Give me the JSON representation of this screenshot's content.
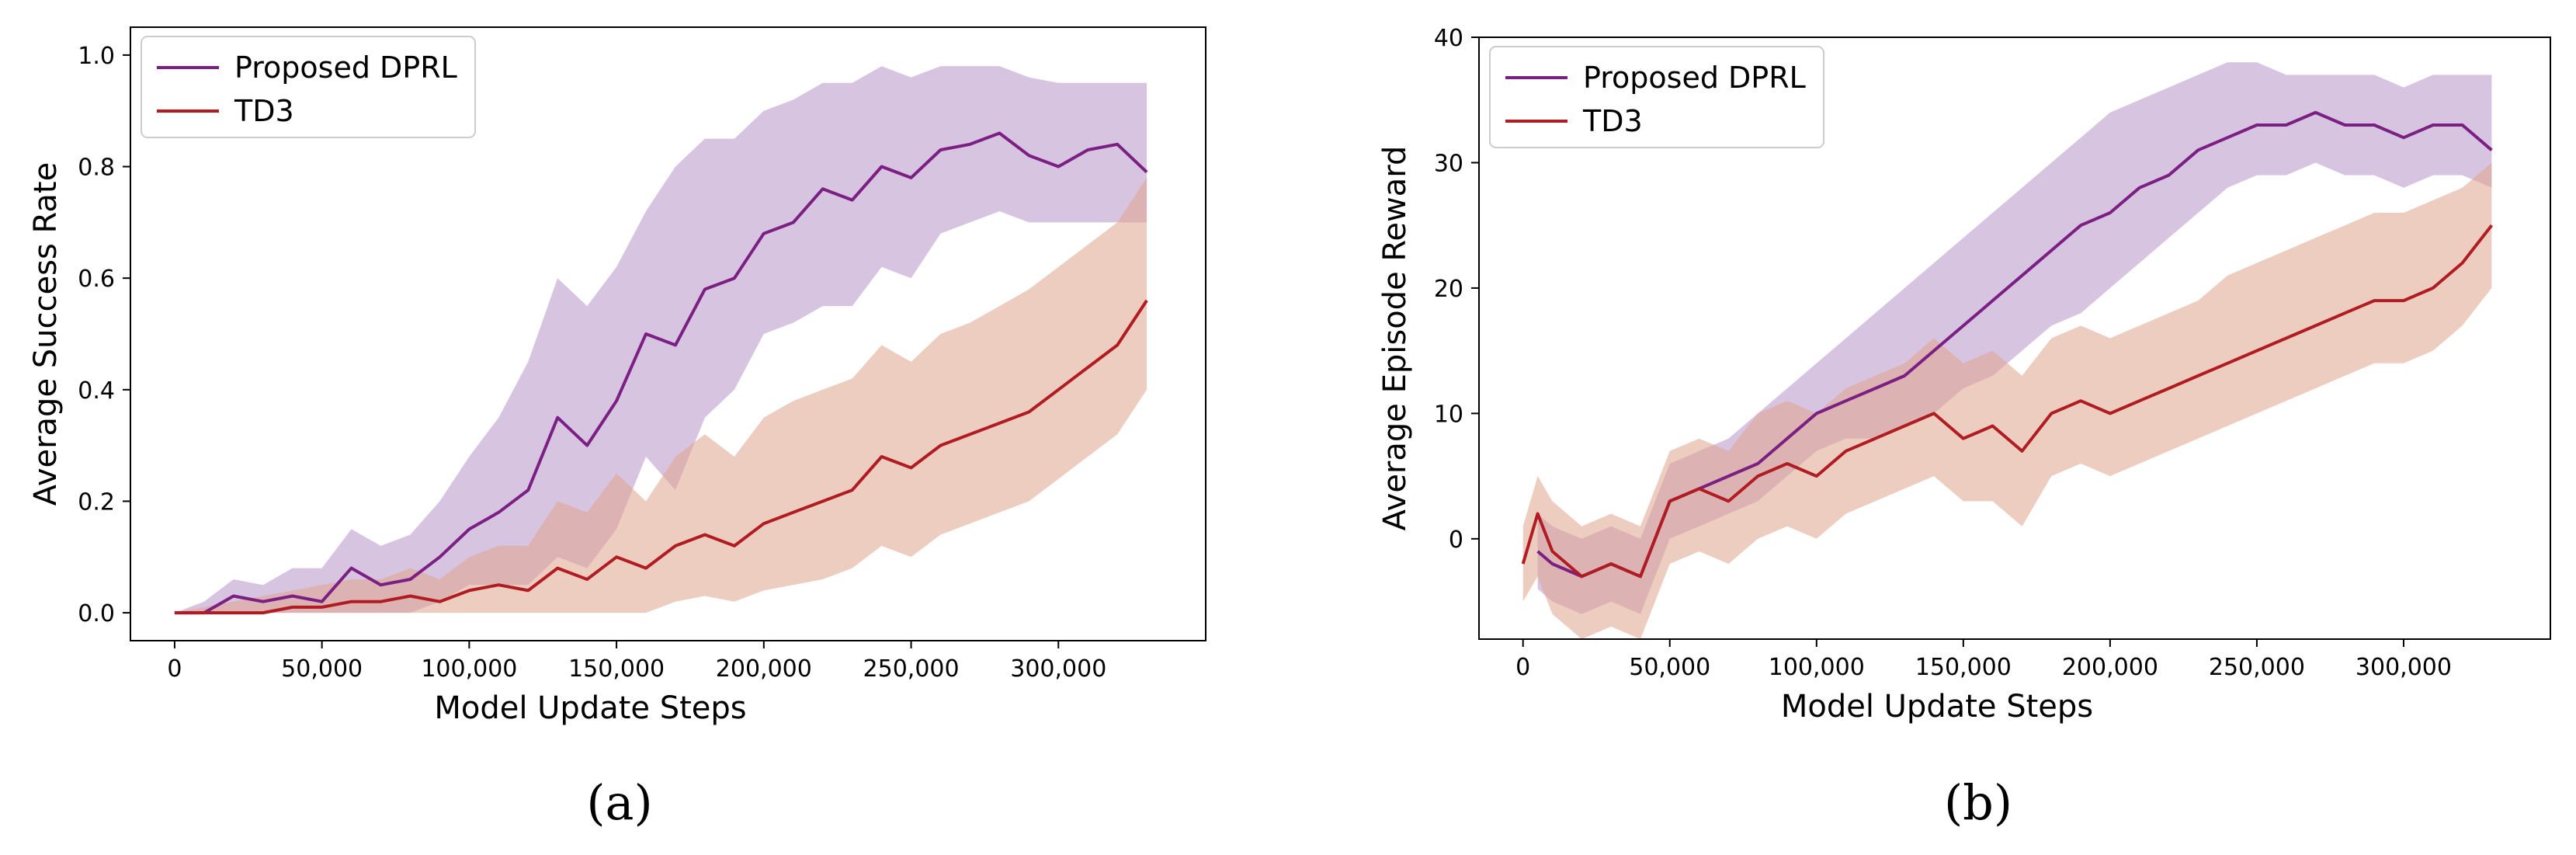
{
  "colors": {
    "dprl_line": "#7b1f82",
    "dprl_band": "#b794c6",
    "td3_line": "#b01c22",
    "td3_band": "#e0a48e"
  },
  "chart_data": [
    {
      "type": "line",
      "panel_label": "(a)",
      "xlabel": "Model Update Steps",
      "ylabel": "Average Success Rate",
      "xlim": [
        -15000,
        350000
      ],
      "ylim": [
        -0.05,
        1.05
      ],
      "xticks": [
        0,
        50000,
        100000,
        150000,
        200000,
        250000,
        300000
      ],
      "xtick_labels": [
        "0",
        "50,000",
        "100,000",
        "150,000",
        "200,000",
        "250,000",
        "300,000"
      ],
      "yticks": [
        0.0,
        0.2,
        0.4,
        0.6,
        0.8,
        1.0
      ],
      "ytick_labels": [
        "0.0",
        "0.2",
        "0.4",
        "0.6",
        "0.8",
        "1.0"
      ],
      "legend": "top-left",
      "grid": false,
      "series": [
        {
          "name": "Proposed DPRL",
          "x": [
            0,
            10000,
            20000,
            30000,
            40000,
            50000,
            60000,
            70000,
            80000,
            90000,
            100000,
            110000,
            120000,
            130000,
            140000,
            150000,
            160000,
            170000,
            180000,
            190000,
            200000,
            210000,
            220000,
            230000,
            240000,
            250000,
            260000,
            270000,
            280000,
            290000,
            300000,
            310000,
            320000,
            330000
          ],
          "y": [
            0.0,
            0.0,
            0.03,
            0.02,
            0.03,
            0.02,
            0.08,
            0.05,
            0.06,
            0.1,
            0.15,
            0.18,
            0.22,
            0.35,
            0.3,
            0.38,
            0.5,
            0.48,
            0.58,
            0.6,
            0.68,
            0.7,
            0.76,
            0.74,
            0.8,
            0.78,
            0.83,
            0.84,
            0.86,
            0.82,
            0.8,
            0.83,
            0.84,
            0.79
          ],
          "lower": [
            0.0,
            0.0,
            0.0,
            0.0,
            0.0,
            0.0,
            0.0,
            0.0,
            0.0,
            0.02,
            0.05,
            0.05,
            0.05,
            0.1,
            0.08,
            0.15,
            0.28,
            0.22,
            0.35,
            0.4,
            0.5,
            0.52,
            0.55,
            0.55,
            0.62,
            0.6,
            0.68,
            0.7,
            0.72,
            0.7,
            0.7,
            0.7,
            0.7,
            0.7
          ],
          "upper": [
            0.0,
            0.02,
            0.06,
            0.05,
            0.08,
            0.08,
            0.15,
            0.12,
            0.14,
            0.2,
            0.28,
            0.35,
            0.45,
            0.6,
            0.55,
            0.62,
            0.72,
            0.8,
            0.85,
            0.85,
            0.9,
            0.92,
            0.95,
            0.95,
            0.98,
            0.96,
            0.98,
            0.98,
            0.98,
            0.96,
            0.95,
            0.95,
            0.95,
            0.95
          ]
        },
        {
          "name": "TD3",
          "x": [
            0,
            10000,
            20000,
            30000,
            40000,
            50000,
            60000,
            70000,
            80000,
            90000,
            100000,
            110000,
            120000,
            130000,
            140000,
            150000,
            160000,
            170000,
            180000,
            190000,
            200000,
            210000,
            220000,
            230000,
            240000,
            250000,
            260000,
            270000,
            280000,
            290000,
            300000,
            310000,
            320000,
            330000
          ],
          "y": [
            0.0,
            0.0,
            0.0,
            0.0,
            0.01,
            0.01,
            0.02,
            0.02,
            0.03,
            0.02,
            0.04,
            0.05,
            0.04,
            0.08,
            0.06,
            0.1,
            0.08,
            0.12,
            0.14,
            0.12,
            0.16,
            0.18,
            0.2,
            0.22,
            0.28,
            0.26,
            0.3,
            0.32,
            0.34,
            0.36,
            0.4,
            0.44,
            0.48,
            0.56
          ],
          "lower": [
            0.0,
            0.0,
            0.0,
            0.0,
            0.0,
            0.0,
            0.0,
            0.0,
            0.0,
            0.0,
            0.0,
            0.0,
            0.0,
            0.0,
            0.0,
            0.0,
            0.0,
            0.02,
            0.03,
            0.02,
            0.04,
            0.05,
            0.06,
            0.08,
            0.12,
            0.1,
            0.14,
            0.16,
            0.18,
            0.2,
            0.24,
            0.28,
            0.32,
            0.4
          ],
          "upper": [
            0.0,
            0.01,
            0.02,
            0.03,
            0.04,
            0.05,
            0.06,
            0.06,
            0.08,
            0.06,
            0.1,
            0.12,
            0.12,
            0.2,
            0.18,
            0.25,
            0.2,
            0.28,
            0.32,
            0.28,
            0.35,
            0.38,
            0.4,
            0.42,
            0.48,
            0.45,
            0.5,
            0.52,
            0.55,
            0.58,
            0.62,
            0.66,
            0.7,
            0.78
          ]
        }
      ]
    },
    {
      "type": "line",
      "panel_label": "(b)",
      "xlabel": "Model Update Steps",
      "ylabel": "Average Episode Reward",
      "xlim": [
        -15000,
        350000
      ],
      "ylim": [
        -8,
        40
      ],
      "xticks": [
        0,
        50000,
        100000,
        150000,
        200000,
        250000,
        300000
      ],
      "xtick_labels": [
        "0",
        "50,000",
        "100,000",
        "150,000",
        "200,000",
        "250,000",
        "300,000"
      ],
      "yticks": [
        0,
        10,
        20,
        30,
        40
      ],
      "ytick_labels": [
        "0",
        "10",
        "20",
        "30",
        "40"
      ],
      "legend": "top-left",
      "grid": false,
      "series": [
        {
          "name": "Proposed DPRL",
          "x": [
            5000,
            10000,
            20000,
            30000,
            40000,
            50000,
            60000,
            70000,
            80000,
            90000,
            100000,
            110000,
            120000,
            130000,
            140000,
            150000,
            160000,
            170000,
            180000,
            190000,
            200000,
            210000,
            220000,
            230000,
            240000,
            250000,
            260000,
            270000,
            280000,
            290000,
            300000,
            310000,
            320000,
            330000
          ],
          "y": [
            -1,
            -2,
            -3,
            -2,
            -3,
            3,
            4,
            5,
            6,
            8,
            10,
            11,
            12,
            13,
            15,
            17,
            19,
            21,
            23,
            25,
            26,
            28,
            29,
            31,
            32,
            33,
            33,
            34,
            33,
            33,
            32,
            33,
            33,
            31
          ],
          "lower": [
            -4,
            -5,
            -6,
            -5,
            -6,
            0,
            1,
            2,
            3,
            5,
            7,
            8,
            8,
            9,
            10,
            12,
            13,
            15,
            17,
            18,
            20,
            22,
            24,
            26,
            28,
            29,
            29,
            30,
            29,
            29,
            28,
            29,
            29,
            28
          ],
          "upper": [
            2,
            1,
            0,
            1,
            0,
            6,
            7,
            8,
            10,
            12,
            14,
            16,
            18,
            20,
            22,
            24,
            26,
            28,
            30,
            32,
            34,
            35,
            36,
            37,
            38,
            38,
            37,
            37,
            37,
            37,
            36,
            37,
            37,
            37
          ]
        },
        {
          "name": "TD3",
          "x": [
            0,
            5000,
            10000,
            20000,
            30000,
            40000,
            50000,
            60000,
            70000,
            80000,
            90000,
            100000,
            110000,
            120000,
            130000,
            140000,
            150000,
            160000,
            170000,
            180000,
            190000,
            200000,
            210000,
            220000,
            230000,
            240000,
            250000,
            260000,
            270000,
            280000,
            290000,
            300000,
            310000,
            320000,
            330000
          ],
          "y": [
            -2,
            2,
            -1,
            -3,
            -2,
            -3,
            3,
            4,
            3,
            5,
            6,
            5,
            7,
            8,
            9,
            10,
            8,
            9,
            7,
            10,
            11,
            10,
            11,
            12,
            13,
            14,
            15,
            16,
            17,
            18,
            19,
            19,
            20,
            22,
            25
          ],
          "lower": [
            -5,
            -3,
            -6,
            -8,
            -7,
            -8,
            -2,
            -1,
            -2,
            0,
            1,
            0,
            2,
            3,
            4,
            5,
            3,
            3,
            1,
            5,
            6,
            5,
            6,
            7,
            8,
            9,
            10,
            11,
            12,
            13,
            14,
            14,
            15,
            17,
            20
          ],
          "upper": [
            1,
            5,
            3,
            1,
            2,
            1,
            7,
            8,
            7,
            10,
            11,
            10,
            12,
            13,
            14,
            16,
            14,
            15,
            13,
            16,
            17,
            16,
            17,
            18,
            19,
            21,
            22,
            23,
            24,
            25,
            26,
            26,
            27,
            28,
            30
          ]
        }
      ]
    }
  ]
}
